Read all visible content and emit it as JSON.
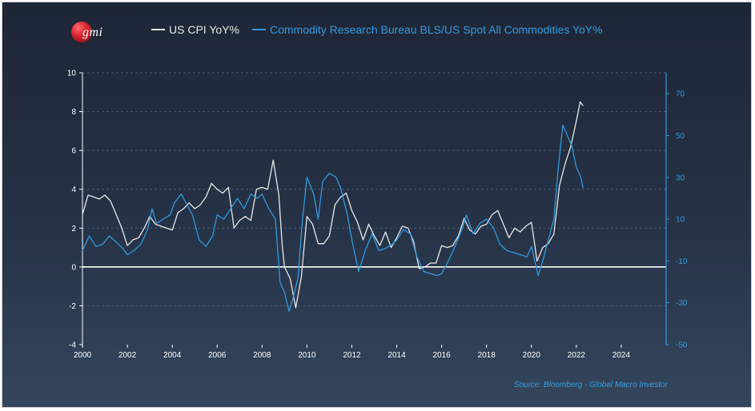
{
  "brand": {
    "logo_text": "gmi"
  },
  "source_note": "Source: Bloomberg - Global Macro Investor",
  "colors": {
    "cpi": "#e8e8e8",
    "commodities": "#2f9be0",
    "axis_left": "#ffffff",
    "axis_right": "#2f9be0"
  },
  "chart_data": {
    "type": "line",
    "legend_position": "top",
    "grid": true,
    "x": {
      "min": 2000,
      "max": 2026,
      "ticks": [
        "2000",
        "2002",
        "2004",
        "2006",
        "2008",
        "2010",
        "2012",
        "2014",
        "2016",
        "2018",
        "2020",
        "2022",
        "2024"
      ]
    },
    "y_left": {
      "min": -4,
      "max": 10,
      "ticks": [
        "-4",
        "-2",
        "0",
        "2",
        "4",
        "6",
        "8",
        "10"
      ]
    },
    "y_right": {
      "min": -50,
      "max": 80,
      "ticks": [
        "-50",
        "-30",
        "-10",
        "10",
        "30",
        "50",
        "70"
      ]
    },
    "series": [
      {
        "name": "US CPI YoY%",
        "axis": "left",
        "points": [
          [
            2000.0,
            2.7
          ],
          [
            2000.25,
            3.7
          ],
          [
            2000.5,
            3.6
          ],
          [
            2000.75,
            3.5
          ],
          [
            2001.0,
            3.7
          ],
          [
            2001.25,
            3.4
          ],
          [
            2001.5,
            2.7
          ],
          [
            2001.75,
            2.0
          ],
          [
            2002.0,
            1.1
          ],
          [
            2002.25,
            1.4
          ],
          [
            2002.5,
            1.5
          ],
          [
            2002.75,
            2.0
          ],
          [
            2003.0,
            2.6
          ],
          [
            2003.25,
            2.2
          ],
          [
            2003.5,
            2.1
          ],
          [
            2003.75,
            2.0
          ],
          [
            2004.0,
            1.9
          ],
          [
            2004.25,
            2.8
          ],
          [
            2004.5,
            3.0
          ],
          [
            2004.75,
            3.3
          ],
          [
            2005.0,
            3.0
          ],
          [
            2005.25,
            3.2
          ],
          [
            2005.5,
            3.6
          ],
          [
            2005.75,
            4.3
          ],
          [
            2006.0,
            4.0
          ],
          [
            2006.25,
            3.8
          ],
          [
            2006.5,
            4.1
          ],
          [
            2006.75,
            2.0
          ],
          [
            2007.0,
            2.4
          ],
          [
            2007.25,
            2.6
          ],
          [
            2007.5,
            2.4
          ],
          [
            2007.75,
            4.0
          ],
          [
            2008.0,
            4.1
          ],
          [
            2008.25,
            4.0
          ],
          [
            2008.5,
            5.5
          ],
          [
            2008.75,
            3.7
          ],
          [
            2008.9,
            1.1
          ],
          [
            2009.0,
            0.0
          ],
          [
            2009.25,
            -0.6
          ],
          [
            2009.5,
            -2.1
          ],
          [
            2009.75,
            -0.5
          ],
          [
            2010.0,
            2.6
          ],
          [
            2010.25,
            2.2
          ],
          [
            2010.5,
            1.2
          ],
          [
            2010.75,
            1.2
          ],
          [
            2011.0,
            1.6
          ],
          [
            2011.25,
            3.2
          ],
          [
            2011.5,
            3.6
          ],
          [
            2011.75,
            3.8
          ],
          [
            2012.0,
            2.9
          ],
          [
            2012.25,
            2.3
          ],
          [
            2012.5,
            1.4
          ],
          [
            2012.75,
            2.2
          ],
          [
            2013.0,
            1.6
          ],
          [
            2013.25,
            1.1
          ],
          [
            2013.5,
            1.8
          ],
          [
            2013.75,
            1.0
          ],
          [
            2014.0,
            1.5
          ],
          [
            2014.25,
            2.1
          ],
          [
            2014.5,
            2.0
          ],
          [
            2014.75,
            1.3
          ],
          [
            2015.0,
            -0.1
          ],
          [
            2015.25,
            0.0
          ],
          [
            2015.5,
            0.2
          ],
          [
            2015.75,
            0.2
          ],
          [
            2016.0,
            1.1
          ],
          [
            2016.25,
            1.0
          ],
          [
            2016.5,
            1.1
          ],
          [
            2016.75,
            1.6
          ],
          [
            2017.0,
            2.5
          ],
          [
            2017.25,
            1.9
          ],
          [
            2017.5,
            1.7
          ],
          [
            2017.75,
            2.1
          ],
          [
            2018.0,
            2.2
          ],
          [
            2018.25,
            2.7
          ],
          [
            2018.5,
            2.9
          ],
          [
            2018.75,
            2.2
          ],
          [
            2019.0,
            1.5
          ],
          [
            2019.25,
            2.0
          ],
          [
            2019.5,
            1.8
          ],
          [
            2019.75,
            2.1
          ],
          [
            2020.0,
            2.3
          ],
          [
            2020.25,
            0.3
          ],
          [
            2020.5,
            1.0
          ],
          [
            2020.75,
            1.2
          ],
          [
            2021.0,
            1.7
          ],
          [
            2021.25,
            4.2
          ],
          [
            2021.5,
            5.3
          ],
          [
            2021.75,
            6.2
          ],
          [
            2022.0,
            7.5
          ],
          [
            2022.17,
            8.5
          ],
          [
            2022.3,
            8.3
          ]
        ]
      },
      {
        "name": "Commodity Research Bureau BLS/US Spot All Commodities YoY%",
        "axis": "right",
        "points": [
          [
            2000.0,
            -5
          ],
          [
            2000.3,
            2
          ],
          [
            2000.6,
            -3
          ],
          [
            2000.9,
            -2
          ],
          [
            2001.2,
            2
          ],
          [
            2001.5,
            -1
          ],
          [
            2001.8,
            -4
          ],
          [
            2002.0,
            -7
          ],
          [
            2002.3,
            -5
          ],
          [
            2002.6,
            -2
          ],
          [
            2002.9,
            5
          ],
          [
            2003.1,
            15
          ],
          [
            2003.3,
            8
          ],
          [
            2003.6,
            10
          ],
          [
            2003.9,
            12
          ],
          [
            2004.1,
            18
          ],
          [
            2004.4,
            22
          ],
          [
            2004.6,
            18
          ],
          [
            2004.9,
            12
          ],
          [
            2005.2,
            0
          ],
          [
            2005.5,
            -3
          ],
          [
            2005.8,
            2
          ],
          [
            2006.0,
            12
          ],
          [
            2006.3,
            10
          ],
          [
            2006.6,
            15
          ],
          [
            2006.9,
            20
          ],
          [
            2007.2,
            15
          ],
          [
            2007.5,
            22
          ],
          [
            2007.8,
            20
          ],
          [
            2008.0,
            22
          ],
          [
            2008.3,
            15
          ],
          [
            2008.6,
            10
          ],
          [
            2008.8,
            -20
          ],
          [
            2009.0,
            -25
          ],
          [
            2009.2,
            -34
          ],
          [
            2009.4,
            -27
          ],
          [
            2009.6,
            -18
          ],
          [
            2009.8,
            10
          ],
          [
            2010.0,
            30
          ],
          [
            2010.3,
            22
          ],
          [
            2010.5,
            10
          ],
          [
            2010.7,
            28
          ],
          [
            2011.0,
            32
          ],
          [
            2011.3,
            30
          ],
          [
            2011.5,
            25
          ],
          [
            2011.8,
            12
          ],
          [
            2012.0,
            0
          ],
          [
            2012.3,
            -15
          ],
          [
            2012.6,
            -5
          ],
          [
            2012.9,
            3
          ],
          [
            2013.2,
            -5
          ],
          [
            2013.5,
            -4
          ],
          [
            2013.8,
            -2
          ],
          [
            2014.0,
            0
          ],
          [
            2014.3,
            5
          ],
          [
            2014.6,
            3
          ],
          [
            2014.9,
            -8
          ],
          [
            2015.2,
            -15
          ],
          [
            2015.5,
            -16
          ],
          [
            2015.8,
            -17
          ],
          [
            2016.0,
            -16
          ],
          [
            2016.3,
            -10
          ],
          [
            2016.6,
            -3
          ],
          [
            2016.9,
            5
          ],
          [
            2017.1,
            12
          ],
          [
            2017.4,
            3
          ],
          [
            2017.7,
            8
          ],
          [
            2018.0,
            10
          ],
          [
            2018.3,
            6
          ],
          [
            2018.6,
            -2
          ],
          [
            2018.9,
            -5
          ],
          [
            2019.2,
            -6
          ],
          [
            2019.5,
            -7
          ],
          [
            2019.8,
            -8
          ],
          [
            2020.0,
            -3
          ],
          [
            2020.3,
            -17
          ],
          [
            2020.5,
            -10
          ],
          [
            2020.8,
            2
          ],
          [
            2021.0,
            10
          ],
          [
            2021.2,
            35
          ],
          [
            2021.4,
            55
          ],
          [
            2021.6,
            50
          ],
          [
            2021.8,
            45
          ],
          [
            2022.0,
            35
          ],
          [
            2022.2,
            30
          ],
          [
            2022.3,
            25
          ]
        ]
      }
    ]
  }
}
